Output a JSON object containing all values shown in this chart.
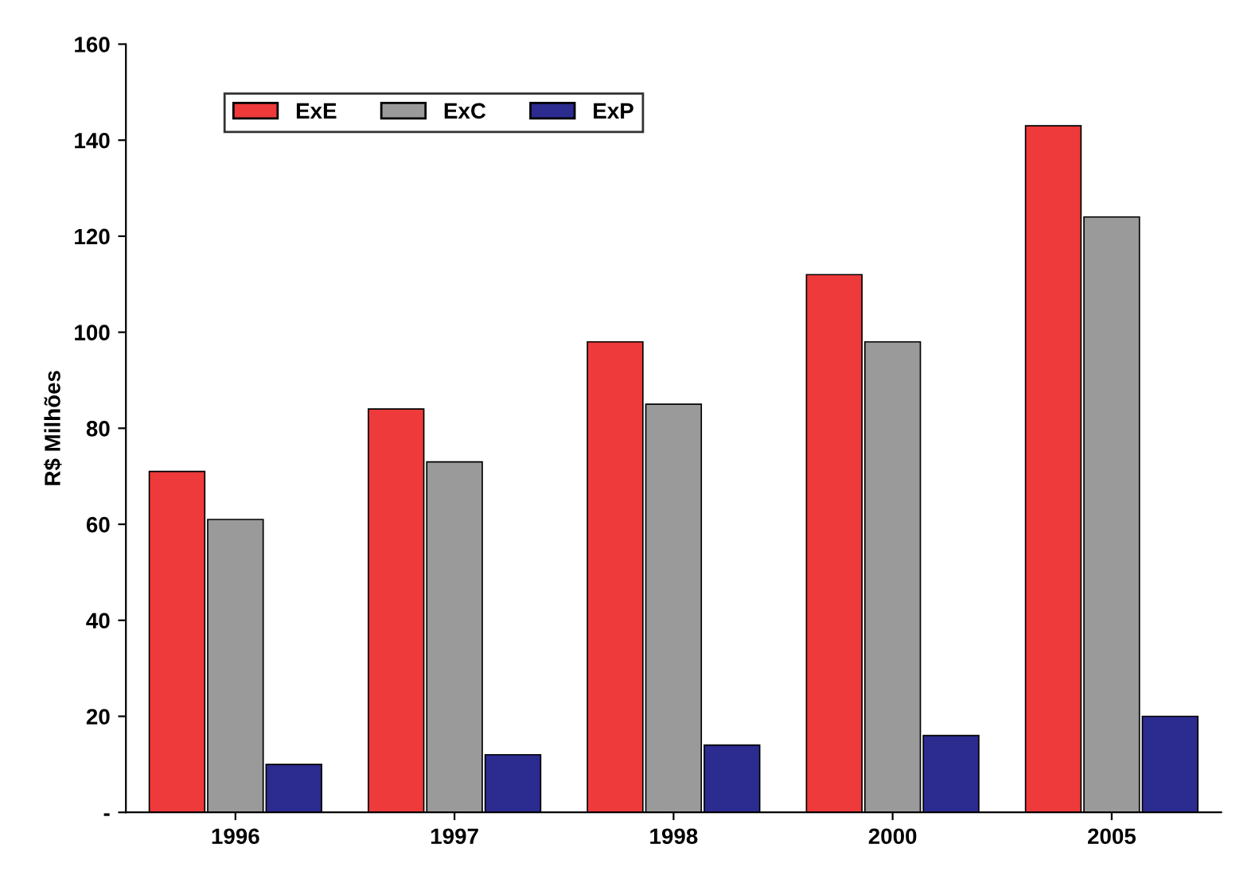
{
  "chart_data": {
    "type": "bar",
    "ylabel": "R$ Milhões",
    "categories": [
      "1996",
      "1997",
      "1998",
      "2000",
      "2005"
    ],
    "series": [
      {
        "name": "ExE",
        "color": "#ee3a3a",
        "values": [
          71,
          84,
          98,
          112,
          143
        ]
      },
      {
        "name": "ExC",
        "color": "#9a9a9a",
        "values": [
          61,
          73,
          85,
          98,
          124
        ]
      },
      {
        "name": "ExP",
        "color": "#2b2b90",
        "values": [
          10,
          12,
          14,
          16,
          20
        ]
      }
    ],
    "ylim": [
      0,
      160
    ],
    "yticks": [
      {
        "value": 0,
        "label": "-"
      },
      20,
      40,
      60,
      80,
      100,
      120,
      140,
      160
    ],
    "grid": false,
    "legend": "top left"
  }
}
